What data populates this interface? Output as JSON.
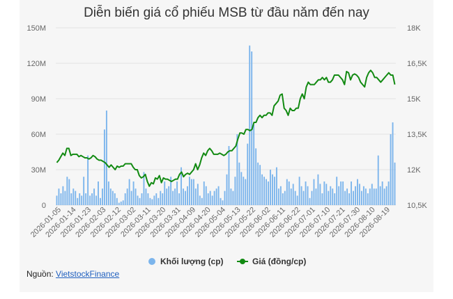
{
  "chart_data": {
    "type": "bar+line",
    "title": "Diễn biến giá cổ phiếu MSB từ đầu năm đến nay",
    "y_left": {
      "ylim": [
        0,
        150000000
      ],
      "ticks": [
        "0",
        "30M",
        "60M",
        "90M",
        "120M",
        "150M"
      ]
    },
    "y_right": {
      "ylim": [
        10500,
        18000
      ],
      "ticks": [
        "10,5K",
        "12K",
        "13,5K",
        "15K",
        "16,5K",
        "18K"
      ]
    },
    "x_tick_labels": [
      "2026-01-05",
      "2026-01-14",
      "2026-01-23",
      "2026-02-03",
      "2026-02-12",
      "2026-03-02",
      "2026-03-11",
      "2026-03-20",
      "2026-03-31",
      "2026-04-09",
      "2026-04-20",
      "2026-05-04",
      "2026-05-13",
      "2026-05-22",
      "2026-06-02",
      "2026-06-11",
      "2026-06-22",
      "2026-07-01",
      "2026-07-10",
      "2026-07-21",
      "2026-07-30",
      "2026-08-10",
      "2026-08-19"
    ],
    "grid": true,
    "legend_position": "bottom",
    "series": [
      {
        "name": "Khối lượng (cp)",
        "type": "bar",
        "axis": "left",
        "color": "#7cb5ec",
        "values": [
          8,
          14,
          10,
          16,
          12,
          24,
          22,
          10,
          14,
          12,
          6,
          10,
          8,
          24,
          10,
          42,
          8,
          10,
          14,
          8,
          20,
          6,
          14,
          64,
          80,
          20,
          14,
          12,
          10,
          6,
          2,
          3,
          4,
          10,
          14,
          22,
          12,
          20,
          14,
          8,
          6,
          10,
          28,
          14,
          10,
          6,
          5,
          8,
          10,
          6,
          12,
          10,
          20,
          14,
          16,
          24,
          12,
          14,
          20,
          10,
          32,
          14,
          12,
          16,
          24,
          22,
          22,
          14,
          18,
          8,
          6,
          20,
          16,
          10,
          12,
          8,
          12,
          14,
          16,
          6,
          4,
          12,
          26,
          50,
          14,
          12,
          24,
          60,
          36,
          28,
          24,
          22,
          52,
          135,
          130,
          68,
          48,
          36,
          34,
          26,
          24,
          22,
          20,
          30,
          26,
          24,
          32,
          14,
          16,
          10,
          12,
          22,
          20,
          14,
          18,
          12,
          8,
          24,
          16,
          12,
          20,
          16,
          6,
          12,
          22,
          14,
          26,
          18,
          10,
          20,
          18,
          12,
          16,
          14,
          10,
          24,
          16,
          20,
          20,
          12,
          14,
          10,
          20,
          12,
          16,
          22,
          18,
          12,
          16,
          14,
          10,
          14,
          18,
          14,
          14,
          42,
          16,
          20,
          14,
          16,
          20,
          60,
          70,
          36
        ]
      },
      {
        "name": "Giá (đồng/cp)",
        "type": "line",
        "axis": "right",
        "color": "#128a12",
        "values": [
          12300,
          12400,
          12550,
          12700,
          12600,
          12900,
          12900,
          12600,
          12650,
          12650,
          12650,
          12550,
          12600,
          12550,
          12500,
          12500,
          12450,
          12500,
          12600,
          12550,
          12450,
          12400,
          12400,
          12350,
          12300,
          12200,
          12100,
          12200,
          12100,
          12000,
          12150,
          12100,
          12150,
          12150,
          12250,
          12250,
          12250,
          12250,
          12100,
          12000,
          12000,
          11750,
          11650,
          11700,
          11800,
          11500,
          11300,
          11450,
          11400,
          11650,
          11600,
          11750,
          11450,
          11650,
          11600,
          11600,
          11550,
          11500,
          11550,
          11600,
          11600,
          11800,
          11900,
          11700,
          11800,
          11850,
          11800,
          11900,
          12000,
          12250,
          12000,
          12200,
          12500,
          12700,
          12600,
          12800,
          12900,
          12800,
          12650,
          12650,
          12650,
          12700,
          12650,
          12600,
          12650,
          12750,
          12800,
          12800,
          12900,
          13000,
          13300,
          13550,
          13550,
          13500,
          13700,
          13700,
          13650,
          13700,
          14000,
          14000,
          14200,
          14300,
          14200,
          14300,
          14300,
          14400,
          14400,
          14300,
          14700,
          14800,
          14900,
          15150,
          15200,
          14600,
          14500,
          14300,
          14600,
          14500,
          14500,
          14600,
          14600,
          15000,
          15200,
          15000,
          15500,
          15700,
          15600,
          15600,
          15600,
          15700,
          15800,
          15800,
          15900,
          15800,
          15900,
          15700,
          15700,
          15800,
          16000,
          16000,
          16000,
          15900,
          15800,
          15600,
          16150,
          16100,
          15800,
          16000,
          16050,
          16000,
          15900,
          15700,
          15600,
          15500,
          15900,
          16100,
          16200,
          16100,
          15900,
          15900,
          15800,
          15700,
          15800,
          15900,
          16000,
          16100,
          16000,
          16000,
          15600
        ]
      }
    ]
  },
  "source": {
    "label": "Nguồn:",
    "link_text": "VietstockFinance"
  }
}
